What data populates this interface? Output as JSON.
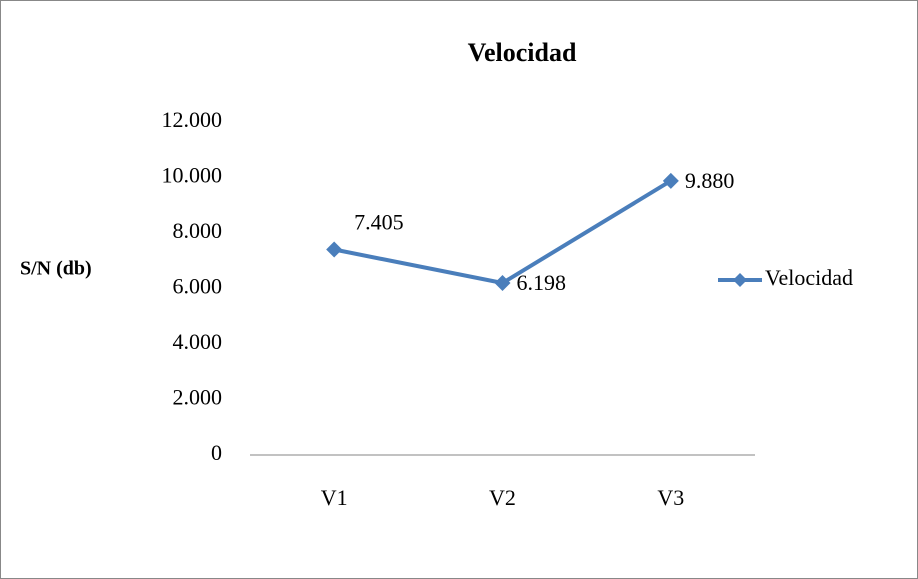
{
  "chart_data": {
    "type": "line",
    "title": "Velocidad",
    "y_label": "S/N (db)",
    "categories": [
      "V1",
      "V2",
      "V3"
    ],
    "series": [
      {
        "name": "Velocidad",
        "color": "#4a7ebb",
        "values": [
          7.405,
          6.198,
          9.88
        ],
        "value_labels": [
          "7.405",
          "6.198",
          "9.880"
        ]
      }
    ],
    "ylim": [
      0,
      12
    ],
    "yticks": [
      0,
      {
        "value": 2,
        "label": "2.000"
      },
      {
        "value": 4,
        "label": "4.000"
      },
      {
        "value": 6,
        "label": "6.000"
      },
      {
        "value": 8,
        "label": "8.000"
      },
      {
        "value": 10,
        "label": "10.000"
      },
      {
        "value": 12,
        "label": "12.000"
      }
    ],
    "grid": false,
    "legend": "right"
  }
}
